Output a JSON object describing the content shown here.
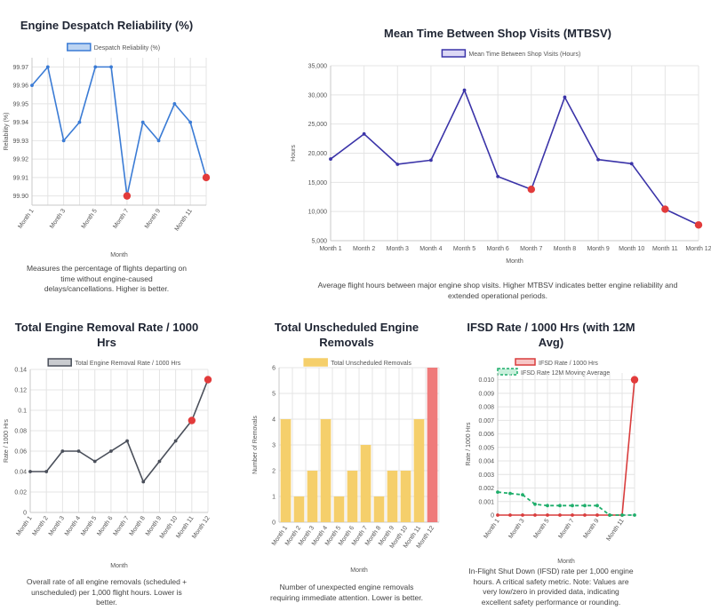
{
  "panels": [
    {
      "title_lines": [
        "Engine Despatch Reliability (%)"
      ],
      "description_lines": [
        "Measures the percentage of flights departing on",
        "time without engine-caused",
        "delays/cancellations. Higher is better."
      ],
      "chart_data": {
        "type": "line",
        "categories": [
          "Month 1",
          "Month 2",
          "Month 3",
          "Month 4",
          "Month 5",
          "Month 6",
          "Month 7",
          "Month 8",
          "Month 9",
          "Month 10",
          "Month 11",
          "Month 12"
        ],
        "tick_labels": [
          "Month 1",
          "",
          "Month 3",
          "",
          "Month 5",
          "",
          "Month 7",
          "",
          "Month 9",
          "",
          "Month 11",
          ""
        ],
        "series": [
          {
            "name": "Despatch Reliability (%)",
            "values": [
              99.96,
              99.97,
              99.93,
              99.94,
              99.97,
              99.97,
              99.9,
              99.94,
              99.93,
              99.95,
              99.94,
              99.91
            ],
            "color": "#3a7bd5",
            "fill": "#bcd4f2",
            "highlight": [
              6,
              11
            ],
            "highlight_color": "#e23b3b"
          }
        ],
        "y_min": 99.895,
        "y_max": 99.975,
        "y_ticks": [
          99.9,
          99.91,
          99.92,
          99.93,
          99.94,
          99.95,
          99.96,
          99.97
        ],
        "y_decimals": 2,
        "xlabel": "Month",
        "ylabel": "Reliability (%)"
      }
    },
    {
      "title_lines": [
        "Mean Time Between Shop Visits (MTBSV)"
      ],
      "description_lines": [
        "Average flight hours between major engine shop visits. Higher MTBSV indicates better engine reliability and",
        "extended operational periods."
      ],
      "chart_data": {
        "type": "line",
        "categories": [
          "Month 1",
          "Month 2",
          "Month 3",
          "Month 4",
          "Month 5",
          "Month 6",
          "Month 7",
          "Month 8",
          "Month 9",
          "Month 10",
          "Month 11",
          "Month 12"
        ],
        "tick_labels": [
          "Month 1",
          "Month 2",
          "Month 3",
          "Month 4",
          "Month 5",
          "Month 6",
          "Month 7",
          "Month 8",
          "Month 9",
          "Month 10",
          "Month 11",
          "Month 12"
        ],
        "series": [
          {
            "name": "Mean Time Between Shop Visits (Hours)",
            "values": [
              19000,
              23300,
              18100,
              18800,
              30800,
              16000,
              13800,
              29600,
              18900,
              18200,
              10400,
              7700
            ],
            "color": "#3a33a8",
            "fill": "#dcd8f5",
            "highlight": [
              6,
              10,
              11
            ],
            "highlight_color": "#e23b3b"
          }
        ],
        "y_min": 5000,
        "y_max": 35000,
        "y_ticks": [
          5000,
          10000,
          15000,
          20000,
          25000,
          30000,
          35000
        ],
        "y_format": "thousands",
        "xlabel": "Month",
        "ylabel": "Hours"
      }
    },
    {
      "title_lines": [
        "Total Engine Removal Rate / 1000",
        "Hrs"
      ],
      "description_lines": [
        "Overall rate of all engine removals (scheduled +",
        "unscheduled) per 1,000 flight hours. Lower is",
        "better."
      ],
      "chart_data": {
        "type": "line",
        "categories": [
          "Month 1",
          "Month 2",
          "Month 3",
          "Month 4",
          "Month 5",
          "Month 6",
          "Month 7",
          "Month 8",
          "Month 9",
          "Month 10",
          "Month 11",
          "Month 12"
        ],
        "tick_labels": [
          "Month 1",
          "Month 2",
          "Month 3",
          "Month 4",
          "Month 5",
          "Month 6",
          "Month 7",
          "Month 8",
          "Month 9",
          "Month 10",
          "Month 11",
          "Month 12"
        ],
        "series": [
          {
            "name": "Total Engine Removal Rate / 1000 Hrs",
            "values": [
              0.04,
              0.04,
              0.06,
              0.06,
              0.05,
              0.06,
              0.07,
              0.03,
              0.05,
              0.07,
              0.09,
              0.13
            ],
            "color": "#4a4f5a",
            "fill": "#c9cbcf",
            "highlight": [
              10,
              11
            ],
            "highlight_color": "#e23b3b"
          }
        ],
        "y_min": 0,
        "y_max": 0.14,
        "y_ticks": [
          0,
          0.02,
          0.04,
          0.06,
          0.08,
          0.1,
          0.12,
          0.14
        ],
        "xlabel": "Month",
        "ylabel": "Rate / 1000 Hrs"
      }
    },
    {
      "title_lines": [
        "Total Unscheduled Engine",
        "Removals"
      ],
      "description_lines": [
        "Number of unexpected engine removals",
        "requiring immediate attention. Lower is better."
      ],
      "chart_data": {
        "type": "bar",
        "categories": [
          "Month 1",
          "Month 2",
          "Month 3",
          "Month 4",
          "Month 5",
          "Month 6",
          "Month 7",
          "Month 8",
          "Month 9",
          "Month 10",
          "Month 11",
          "Month 12"
        ],
        "tick_labels": [
          "Month 1",
          "Month 2",
          "Month 3",
          "Month 4",
          "Month 5",
          "Month 6",
          "Month 7",
          "Month 8",
          "Month 9",
          "Month 10",
          "Month 11",
          "Month 12"
        ],
        "series": [
          {
            "name": "Total Unscheduled Removals",
            "values": [
              4,
              1,
              2,
              4,
              1,
              2,
              3,
              1,
              2,
              2,
              4,
              6
            ],
            "color": "#f5cf6b",
            "highlight": [
              11
            ],
            "highlight_color": "#ef7a7a"
          }
        ],
        "y_min": 0,
        "y_max": 6,
        "y_ticks": [
          0,
          1,
          2,
          3,
          4,
          5,
          6
        ],
        "xlabel": "Month",
        "ylabel": "Number of Removals"
      }
    },
    {
      "title_lines": [
        "IFSD Rate / 1000 Hrs (with 12M",
        "Avg)"
      ],
      "description_lines": [
        "In-Flight Shut Down (IFSD) rate per 1,000 engine",
        "hours. A critical safety metric. Note: Values are",
        "very low/zero in provided data, indicating",
        "excellent safety performance or rounding."
      ],
      "chart_data": {
        "type": "line",
        "categories": [
          "Month 1",
          "Month 2",
          "Month 3",
          "Month 4",
          "Month 5",
          "Month 6",
          "Month 7",
          "Month 8",
          "Month 9",
          "Month 10",
          "Month 11",
          "Month 12"
        ],
        "tick_labels": [
          "Month 1",
          "",
          "Month 3",
          "",
          "Month 5",
          "",
          "Month 7",
          "",
          "Month 9",
          "",
          "Month 11",
          ""
        ],
        "series": [
          {
            "name": "IFSD Rate / 1000 Hrs",
            "values": [
              0,
              0,
              0,
              0,
              0,
              0,
              0,
              0,
              0,
              0,
              0,
              0.01
            ],
            "color": "#d93d3d",
            "fill": "#f7c6c6",
            "highlight": [
              11
            ],
            "highlight_color": "#e23b3b"
          },
          {
            "name": "IFSD Rate 12M Moving Average",
            "values": [
              0.0017,
              0.0016,
              0.0015,
              0.0008,
              0.0007,
              0.0007,
              0.0007,
              0.0007,
              0.0007,
              0,
              0,
              0
            ],
            "color": "#1fae6b",
            "fill": "#c9f0dc",
            "dashed": true
          }
        ],
        "y_min": 0,
        "y_max": 0.0105,
        "y_ticks": [
          0,
          0.001,
          0.002,
          0.003,
          0.004,
          0.005,
          0.006,
          0.007,
          0.008,
          0.009,
          0.01
        ],
        "y_decimals": 3,
        "xlabel": "Month",
        "ylabel": "Rate / 1000 Hrs"
      }
    }
  ]
}
